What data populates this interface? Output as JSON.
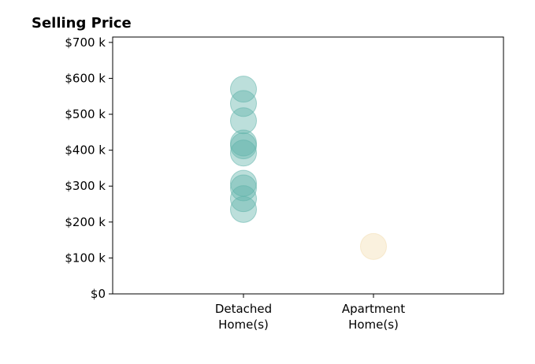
{
  "chart_data": {
    "type": "scatter",
    "title": "Selling Price",
    "xlabel": "",
    "ylabel": "",
    "categories": [
      [
        "Detached",
        "Home(s)"
      ],
      [
        "Apartment",
        "Home(s)"
      ]
    ],
    "y_ticks": [
      0,
      100000,
      200000,
      300000,
      400000,
      500000,
      600000,
      700000
    ],
    "y_tick_labels": [
      "$0",
      "$100 k",
      "$200 k",
      "$300 k",
      "$400 k",
      "$500 k",
      "$600 k",
      "$700 k"
    ],
    "ylim": [
      0,
      715000
    ],
    "grid": false,
    "series": [
      {
        "category": 0,
        "color": "#5fb3aa",
        "values": [
          570000,
          530000,
          482000,
          420000,
          412000,
          392000,
          308000,
          295000,
          265000,
          235000
        ]
      },
      {
        "category": 1,
        "color": "#f3ddb0",
        "values": [
          132000
        ]
      }
    ]
  }
}
